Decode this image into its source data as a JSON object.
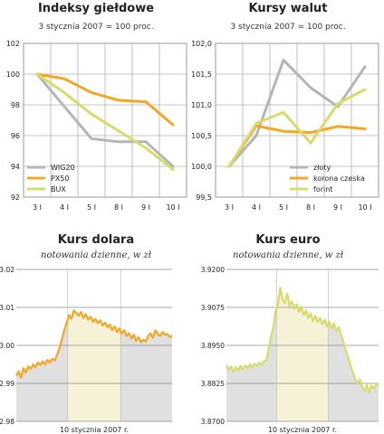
{
  "chart_data": [
    {
      "type": "line",
      "title": "Indeksy giełdowe",
      "subtitle": "3 stycznia 2007 = 100 proc.",
      "categories": [
        "3 I",
        "4 I",
        "5 I",
        "8 I",
        "9 I",
        "10 I"
      ],
      "yticks": [
        "92",
        "94",
        "96",
        "98",
        "100",
        "102"
      ],
      "ylim": [
        92,
        102
      ],
      "grid": true,
      "legend_position": "bottom-left",
      "series": [
        {
          "name": "WIG20",
          "color": "#b5b5b5",
          "values": [
            100,
            97.9,
            95.8,
            95.6,
            95.6,
            94.0
          ]
        },
        {
          "name": "PX50",
          "color": "#f5a623",
          "values": [
            100,
            99.7,
            98.8,
            98.3,
            98.2,
            96.7
          ]
        },
        {
          "name": "BUX",
          "color": "#d6db6a",
          "values": [
            100,
            98.8,
            97.4,
            96.3,
            95.2,
            93.8
          ]
        }
      ]
    },
    {
      "type": "line",
      "title": "Kursy walut",
      "subtitle": "3 stycznia 2007 = 100 proc.",
      "categories": [
        "3 I",
        "4 I",
        "5 I",
        "8 I",
        "9 I",
        "10 I"
      ],
      "yticks": [
        "99,5",
        "100,0",
        "100,5",
        "101,0",
        "101,5",
        "102,0"
      ],
      "ylim": [
        99.5,
        102.0
      ],
      "grid": true,
      "legend_position": "bottom-right",
      "series": [
        {
          "name": "złoty",
          "color": "#b5b5b5",
          "values": [
            100.0,
            100.5,
            101.73,
            101.28,
            100.97,
            101.62
          ]
        },
        {
          "name": "korona czeska",
          "color": "#f5a623",
          "values": [
            100.0,
            100.66,
            100.57,
            100.55,
            100.65,
            100.61
          ]
        },
        {
          "name": "forint",
          "color": "#d6db6a",
          "values": [
            100.0,
            100.7,
            100.88,
            100.38,
            101.02,
            101.25
          ]
        }
      ]
    },
    {
      "type": "line",
      "title": "Kurs dolara",
      "subtitle": "notowania dzienne, w zł",
      "xlabel": "10 stycznia 2007 r.",
      "yticks": [
        "2.98",
        "2.99",
        "3.00",
        "3.01",
        "3.02"
      ],
      "ylim": [
        2.98,
        3.02
      ],
      "grid": true,
      "color": "#f5a623",
      "values": [
        2.992,
        2.9932,
        2.9915,
        2.994,
        2.9928,
        2.9945,
        2.9938,
        2.995,
        2.9942,
        2.9955,
        2.9948,
        2.9958,
        2.995,
        2.9962,
        2.9955,
        2.9965,
        2.996,
        2.9975,
        2.9992,
        3.0015,
        3.004,
        3.006,
        3.008,
        3.007,
        3.0092,
        3.0085,
        3.0078,
        3.0088,
        3.0072,
        3.0082,
        3.0068,
        3.0075,
        3.0062,
        3.007,
        3.0058,
        3.0066,
        3.0052,
        3.006,
        3.0048,
        3.0055,
        3.004,
        3.005,
        3.0035,
        3.0045,
        3.003,
        3.004,
        3.0025,
        3.0032,
        3.0018,
        3.0028,
        3.0012,
        3.0022,
        3.0008,
        3.0015,
        3.001,
        3.0025,
        3.0032,
        3.002,
        3.004,
        3.003,
        3.0025,
        3.0035,
        3.0028,
        3.003,
        3.0022,
        3.0026
      ],
      "band_start_fraction": 0.33,
      "band_end_fraction": 0.67
    },
    {
      "type": "line",
      "title": "Kurs euro",
      "subtitle": "notowania dzienne, w zł",
      "xlabel": "10 stycznia 2007 r.",
      "yticks": [
        "3.8700",
        "3.8825",
        "3.8950",
        "3.9075",
        "3.9200"
      ],
      "ylim": [
        3.87,
        3.92
      ],
      "grid": true,
      "color": "#d6db6a",
      "values": [
        3.8885,
        3.887,
        3.888,
        3.8862,
        3.8878,
        3.8868,
        3.8882,
        3.8872,
        3.8884,
        3.8875,
        3.8888,
        3.8878,
        3.889,
        3.8882,
        3.8893,
        3.8886,
        3.8898,
        3.89,
        3.8935,
        3.8975,
        3.901,
        3.906,
        3.9085,
        3.914,
        3.91,
        3.909,
        3.912,
        3.908,
        3.9095,
        3.907,
        3.9085,
        3.906,
        3.9078,
        3.905,
        3.9065,
        3.904,
        3.9055,
        3.903,
        3.9048,
        3.9025,
        3.904,
        3.902,
        3.9035,
        3.9012,
        3.9028,
        3.9005,
        3.9022,
        3.8998,
        3.901,
        3.8985,
        3.896,
        3.8935,
        3.891,
        3.8885,
        3.886,
        3.884,
        3.8825,
        3.8838,
        3.8815,
        3.88,
        3.882,
        3.8795,
        3.8818,
        3.8808,
        3.8822,
        3.8816
      ],
      "band_start_fraction": 0.33,
      "band_end_fraction": 0.67
    }
  ]
}
